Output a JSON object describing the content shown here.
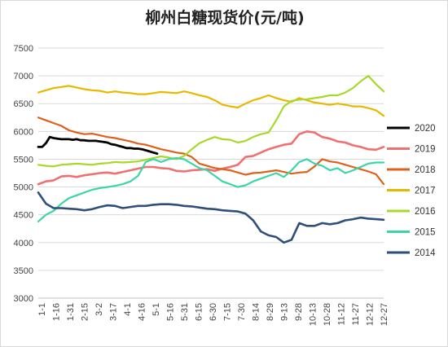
{
  "chart_data": {
    "type": "line",
    "title": "柳州白糖现货价(元/吨)",
    "xlabel": "",
    "ylabel": "",
    "ylim": [
      3000,
      7500
    ],
    "y_ticks": [
      3000,
      3500,
      4000,
      4500,
      5000,
      5500,
      6000,
      6500,
      7000,
      7500
    ],
    "x_tick_labels": [
      "1-1",
      "1-16",
      "1-31",
      "2-15",
      "3-2",
      "3-17",
      "4-1",
      "4-16",
      "5-1",
      "5-16",
      "5-31",
      "6-15",
      "6-30",
      "7-15",
      "7-30",
      "8-14",
      "8-29",
      "9-13",
      "9-28",
      "10-13",
      "10-28",
      "11-12",
      "11-27",
      "12-12",
      "12-27"
    ],
    "x_domain": [
      0,
      360
    ],
    "x_unit": "day of year",
    "grid": {
      "horizontal": true,
      "vertical": false
    },
    "legend_position": "right",
    "series": [
      {
        "name": "2020",
        "color": "#000000",
        "width": 2.8,
        "x": [
          0,
          4,
          8,
          12,
          16,
          20,
          24,
          28,
          32,
          36,
          40,
          44,
          48,
          52,
          56,
          60,
          64,
          68,
          72,
          76,
          80,
          84,
          88,
          92,
          96,
          100,
          104,
          108,
          112,
          116,
          120,
          124
        ],
        "values": [
          5720,
          5720,
          5790,
          5900,
          5880,
          5870,
          5860,
          5860,
          5860,
          5850,
          5860,
          5840,
          5840,
          5830,
          5830,
          5830,
          5820,
          5810,
          5800,
          5770,
          5760,
          5740,
          5720,
          5700,
          5700,
          5690,
          5690,
          5680,
          5660,
          5640,
          5620,
          5600
        ]
      },
      {
        "name": "2019",
        "color": "#f07070",
        "width": 2.6,
        "x": [
          0,
          8,
          16,
          24,
          32,
          40,
          48,
          56,
          64,
          72,
          80,
          88,
          96,
          104,
          112,
          120,
          128,
          136,
          144,
          152,
          160,
          168,
          176,
          184,
          192,
          200,
          208,
          216,
          224,
          232,
          240,
          248,
          256,
          264,
          272,
          280,
          288,
          296,
          304,
          312,
          320,
          328,
          336,
          344,
          352,
          360
        ],
        "values": [
          5050,
          5100,
          5120,
          5190,
          5200,
          5180,
          5210,
          5230,
          5250,
          5260,
          5240,
          5270,
          5300,
          5330,
          5360,
          5360,
          5340,
          5330,
          5290,
          5280,
          5300,
          5310,
          5320,
          5290,
          5330,
          5360,
          5400,
          5540,
          5560,
          5620,
          5680,
          5720,
          5760,
          5780,
          5950,
          6000,
          5980,
          5900,
          5870,
          5820,
          5800,
          5750,
          5720,
          5680,
          5670,
          5720
        ]
      },
      {
        "name": "2018",
        "color": "#e0601a",
        "width": 2.2,
        "x": [
          0,
          8,
          16,
          24,
          32,
          40,
          48,
          56,
          64,
          72,
          80,
          88,
          96,
          104,
          112,
          120,
          128,
          136,
          144,
          152,
          160,
          168,
          176,
          184,
          192,
          200,
          208,
          216,
          224,
          232,
          240,
          248,
          256,
          264,
          272,
          280,
          288,
          296,
          304,
          312,
          320,
          328,
          336,
          344,
          352,
          360
        ],
        "values": [
          6250,
          6200,
          6150,
          6100,
          6020,
          5980,
          5950,
          5960,
          5930,
          5900,
          5880,
          5850,
          5820,
          5780,
          5760,
          5720,
          5680,
          5650,
          5620,
          5600,
          5540,
          5420,
          5380,
          5340,
          5320,
          5300,
          5260,
          5220,
          5250,
          5260,
          5280,
          5300,
          5270,
          5240,
          5260,
          5270,
          5370,
          5500,
          5460,
          5440,
          5400,
          5360,
          5320,
          5280,
          5230,
          5050
        ]
      },
      {
        "name": "2017",
        "color": "#e8b800",
        "width": 2.2,
        "x": [
          0,
          8,
          16,
          24,
          32,
          40,
          48,
          56,
          64,
          72,
          80,
          88,
          96,
          104,
          112,
          120,
          128,
          136,
          144,
          152,
          160,
          168,
          176,
          184,
          192,
          200,
          208,
          216,
          224,
          232,
          240,
          248,
          256,
          264,
          272,
          280,
          288,
          296,
          304,
          312,
          320,
          328,
          336,
          344,
          352,
          360
        ],
        "values": [
          6700,
          6740,
          6780,
          6800,
          6820,
          6790,
          6760,
          6740,
          6730,
          6700,
          6720,
          6700,
          6690,
          6670,
          6670,
          6690,
          6710,
          6700,
          6690,
          6720,
          6690,
          6650,
          6620,
          6560,
          6480,
          6450,
          6430,
          6500,
          6560,
          6600,
          6650,
          6600,
          6560,
          6530,
          6600,
          6560,
          6520,
          6500,
          6480,
          6500,
          6480,
          6450,
          6450,
          6420,
          6380,
          6280
        ]
      },
      {
        "name": "2016",
        "color": "#a8d82a",
        "width": 2.2,
        "x": [
          0,
          8,
          16,
          24,
          32,
          40,
          48,
          56,
          64,
          72,
          80,
          88,
          96,
          104,
          112,
          120,
          128,
          136,
          144,
          152,
          160,
          168,
          176,
          184,
          192,
          200,
          208,
          216,
          224,
          232,
          240,
          248,
          256,
          264,
          272,
          280,
          288,
          296,
          304,
          312,
          320,
          328,
          336,
          344,
          352,
          360
        ],
        "values": [
          5400,
          5380,
          5370,
          5400,
          5410,
          5420,
          5410,
          5400,
          5420,
          5430,
          5450,
          5440,
          5450,
          5460,
          5490,
          5520,
          5550,
          5530,
          5500,
          5560,
          5680,
          5790,
          5850,
          5900,
          5860,
          5850,
          5800,
          5830,
          5900,
          5950,
          5980,
          6200,
          6450,
          6550,
          6570,
          6580,
          6600,
          6620,
          6650,
          6650,
          6700,
          6780,
          6900,
          7000,
          6850,
          6720
        ]
      },
      {
        "name": "2015",
        "color": "#3ad6a6",
        "width": 2.2,
        "x": [
          0,
          8,
          16,
          24,
          32,
          40,
          48,
          56,
          64,
          72,
          80,
          88,
          96,
          104,
          112,
          120,
          128,
          136,
          144,
          152,
          160,
          168,
          176,
          184,
          192,
          200,
          208,
          216,
          224,
          232,
          240,
          248,
          256,
          264,
          272,
          280,
          288,
          296,
          304,
          312,
          320,
          328,
          336,
          344,
          352,
          360
        ],
        "values": [
          4380,
          4500,
          4570,
          4700,
          4800,
          4850,
          4900,
          4950,
          4980,
          5000,
          5020,
          5050,
          5100,
          5200,
          5450,
          5500,
          5450,
          5500,
          5520,
          5500,
          5420,
          5340,
          5300,
          5200,
          5100,
          5050,
          5000,
          5030,
          5100,
          5150,
          5200,
          5250,
          5180,
          5300,
          5450,
          5500,
          5420,
          5380,
          5300,
          5340,
          5250,
          5300,
          5360,
          5420,
          5440,
          5440
        ]
      },
      {
        "name": "2014",
        "color": "#2d4f7a",
        "width": 2.6,
        "x": [
          0,
          8,
          16,
          24,
          32,
          40,
          48,
          56,
          64,
          72,
          80,
          88,
          96,
          104,
          112,
          120,
          128,
          136,
          144,
          152,
          160,
          168,
          176,
          184,
          192,
          200,
          208,
          216,
          224,
          232,
          240,
          248,
          256,
          264,
          272,
          280,
          288,
          296,
          304,
          312,
          320,
          328,
          336,
          344,
          352,
          360
        ],
        "values": [
          4900,
          4700,
          4620,
          4620,
          4610,
          4600,
          4580,
          4600,
          4640,
          4670,
          4660,
          4620,
          4640,
          4660,
          4660,
          4680,
          4690,
          4690,
          4680,
          4660,
          4650,
          4630,
          4610,
          4600,
          4580,
          4570,
          4560,
          4520,
          4400,
          4200,
          4130,
          4100,
          4000,
          4050,
          4350,
          4300,
          4300,
          4350,
          4330,
          4350,
          4400,
          4420,
          4450,
          4430,
          4420,
          4410
        ]
      }
    ]
  }
}
